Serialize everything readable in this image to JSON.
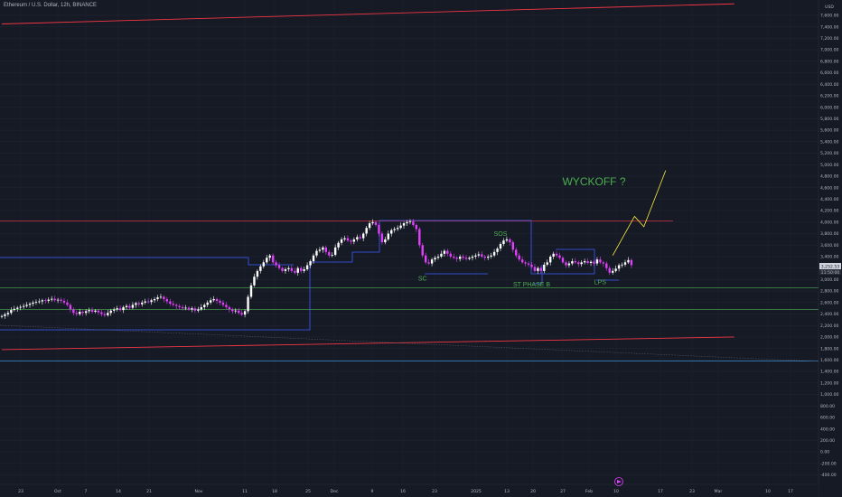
{
  "header": {
    "symbol_line": "Ethereum / U.S. Dollar, 12h, BINANCE"
  },
  "chart_data": {
    "type": "candlestick",
    "symbol": "Ethereum / U.S. Dollar",
    "interval": "12h",
    "exchange": "BINANCE",
    "currency_label": "USD",
    "price_badges": [
      "3,252.53",
      "11:50:00"
    ],
    "y_ticks": [
      -400,
      -200,
      0,
      200,
      400,
      600,
      800,
      1000,
      1200,
      1400,
      1600,
      1800,
      2000,
      2200,
      2400,
      2600,
      2800,
      3000,
      3200,
      3400,
      3600,
      3800,
      4000,
      4200,
      4400,
      4600,
      4800,
      5000,
      5200,
      5400,
      5600,
      5800,
      6000,
      6200,
      6400,
      6600,
      6800,
      7000,
      7200,
      7400,
      7600
    ],
    "y_tick_labels": [
      "-400.00",
      "-200.00",
      "0.00",
      "200.00",
      "400.00",
      "600.00",
      "800.00",
      "1,000.00",
      "1,200.00",
      "1,400.00",
      "1,600.00",
      "1,800.00",
      "2,000.00",
      "2,200.00",
      "2,400.00",
      "2,600.00",
      "2,800.00",
      "3,000.00",
      "3,200.00",
      "3,400.00",
      "3,600.00",
      "3,800.00",
      "4,000.00",
      "4,200.00",
      "4,400.00",
      "4,600.00",
      "4,800.00",
      "5,000.00",
      "5,200.00",
      "5,400.00",
      "5,600.00",
      "5,800.00",
      "6,000.00",
      "6,200.00",
      "6,400.00",
      "6,600.00",
      "6,800.00",
      "7,000.00",
      "7,200.00",
      "7,400.00",
      "7,600.00"
    ],
    "x_ticks": [
      "23",
      "Oct",
      "7",
      "14",
      "21",
      "Nov",
      "11",
      "18",
      "25",
      "Dec",
      "9",
      "16",
      "23",
      "2025",
      "13",
      "20",
      "27",
      "Feb",
      "10",
      "17",
      "23",
      "Mar",
      "10",
      "17"
    ],
    "ohlc_closes": [
      2365,
      2395,
      2420,
      2470,
      2490,
      2510,
      2525,
      2540,
      2560,
      2580,
      2600,
      2610,
      2620,
      2640,
      2630,
      2650,
      2665,
      2640,
      2650,
      2630,
      2600,
      2560,
      2480,
      2420,
      2400,
      2440,
      2420,
      2450,
      2470,
      2440,
      2460,
      2430,
      2400,
      2380,
      2420,
      2460,
      2480,
      2500,
      2470,
      2520,
      2540,
      2510,
      2560,
      2590,
      2570,
      2600,
      2620,
      2610,
      2640,
      2660,
      2690,
      2700,
      2660,
      2620,
      2580,
      2560,
      2540,
      2520,
      2500,
      2510,
      2480,
      2500,
      2460,
      2480,
      2520,
      2560,
      2600,
      2640,
      2660,
      2630,
      2600,
      2560,
      2520,
      2480,
      2450,
      2460,
      2420,
      2390,
      2450,
      2700,
      2900,
      3050,
      3150,
      3230,
      3300,
      3380,
      3420,
      3300,
      3250,
      3200,
      3150,
      3180,
      3200,
      3150,
      3120,
      3200,
      3150,
      3180,
      3250,
      3320,
      3420,
      3500,
      3520,
      3560,
      3480,
      3420,
      3430,
      3560,
      3640,
      3700,
      3720,
      3680,
      3660,
      3700,
      3740,
      3720,
      3800,
      3900,
      3980,
      4000,
      3950,
      3800,
      3650,
      3700,
      3800,
      3860,
      3880,
      3900,
      3940,
      3980,
      4000,
      4010,
      3950,
      3880,
      3600,
      3420,
      3300,
      3280,
      3350,
      3380,
      3400,
      3450,
      3500,
      3450,
      3400,
      3380,
      3360,
      3400,
      3380,
      3360,
      3380,
      3400,
      3420,
      3440,
      3400,
      3380,
      3400,
      3420,
      3480,
      3540,
      3620,
      3680,
      3700,
      3650,
      3520,
      3420,
      3350,
      3300,
      3280,
      3260,
      3220,
      3150,
      3200,
      3150,
      3260,
      3300,
      3400,
      3450,
      3420,
      3380,
      3300,
      3250,
      3280,
      3320,
      3300,
      3270,
      3300,
      3320,
      3290,
      3310,
      3280,
      3350,
      3300,
      3280,
      3200,
      3120,
      3150,
      3190,
      3250,
      3260,
      3300,
      3340,
      3252
    ],
    "annotations": [
      {
        "text": "WYCKOFF ?",
        "color": "#4caf50",
        "date_index": 190,
        "price": 4640
      },
      {
        "text": "SOS",
        "color": "#4caf50",
        "date_index": 160,
        "price": 3760
      },
      {
        "text": "SC",
        "color": "#4caf50",
        "date_index": 135,
        "price": 2980
      },
      {
        "text": "ST PHASE B",
        "color": "#4caf50",
        "date_index": 170,
        "price": 2880
      },
      {
        "text": "LPS",
        "color": "#4caf50",
        "date_index": 192,
        "price": 2920
      }
    ],
    "horizontal_levels": [
      {
        "price": 4020,
        "color": "#f23645"
      },
      {
        "price": 2860,
        "color": "#4caf50"
      },
      {
        "price": 2480,
        "color": "#4caf50"
      },
      {
        "price": 1580,
        "color": "#42a5f5"
      }
    ],
    "channel_lines": [
      {
        "from": [
          0,
          7450
        ],
        "to": [
          235,
          7800
        ],
        "color": "#f23645"
      },
      {
        "from": [
          0,
          1780
        ],
        "to": [
          235,
          2000
        ],
        "color": "#f23645"
      }
    ],
    "projection": [
      [
        196,
        3420
      ],
      [
        203,
        4100
      ],
      [
        206,
        3920
      ],
      [
        213,
        4900
      ]
    ],
    "projection_color": "#ffeb3b",
    "grid": true,
    "legend": "none"
  }
}
